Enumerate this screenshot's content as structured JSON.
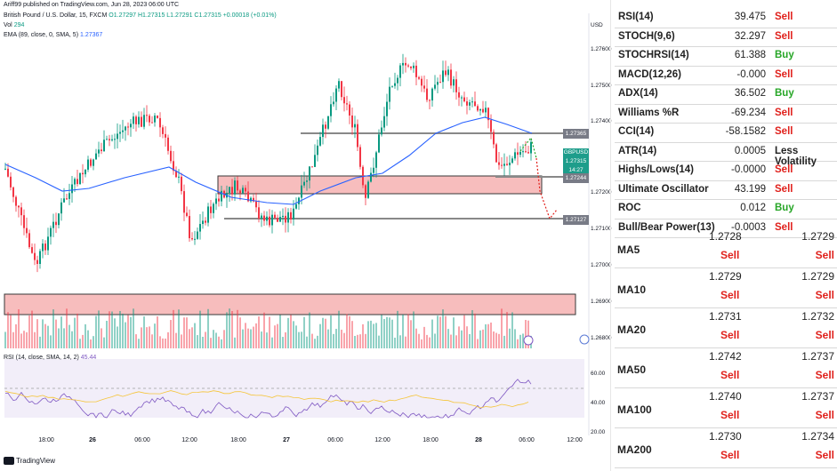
{
  "header": {
    "published": "Ariff99 published on TradingView.com, Jun 28, 2023 06:00 UTC",
    "symbol_line": "British Pound / U.S. Dollar, 15, FXCM",
    "ohlc": "O1.27297 H1.27315 L1.27291 C1.27315 +0.00018 (+0.01%)",
    "vol_label": "Vol",
    "vol_value": "294",
    "ema_label": "EMA (89, close, 0, SMA, 5)",
    "ema_value": "1.27367",
    "rsi_label": "RSI (14, close, SMA, 14, 2)",
    "rsi_value": "45.44"
  },
  "chart": {
    "currency": "USD",
    "price_axis": [
      "1.27600",
      "1.27500",
      "1.27400",
      "1.27200",
      "1.27100",
      "1.27000",
      "1.26900",
      "1.26800"
    ],
    "level_tags": [
      "1.27365",
      "1.27244",
      "1.27127"
    ],
    "price_tag": {
      "symbol": "GBPUSD",
      "price": "1.27315",
      "countdown": "14:27"
    },
    "rsi_axis": [
      "60.00",
      "40.00",
      "20.00"
    ],
    "time_axis": [
      "18:00",
      "26",
      "06:00",
      "12:00",
      "18:00",
      "27",
      "06:00",
      "12:00",
      "18:00",
      "28",
      "06:00",
      "12:00"
    ],
    "brand": "TradingView"
  },
  "indicators": [
    {
      "name": "RSI(14)",
      "value": "39.475",
      "action": "Sell"
    },
    {
      "name": "STOCH(9,6)",
      "value": "32.297",
      "action": "Sell"
    },
    {
      "name": "STOCHRSI(14)",
      "value": "61.388",
      "action": "Buy"
    },
    {
      "name": "MACD(12,26)",
      "value": "-0.000",
      "action": "Sell"
    },
    {
      "name": "ADX(14)",
      "value": "36.502",
      "action": "Buy"
    },
    {
      "name": "Williams %R",
      "value": "-69.234",
      "action": "Sell"
    },
    {
      "name": "CCI(14)",
      "value": "-58.1582",
      "action": "Sell"
    },
    {
      "name": "ATR(14)",
      "value": "0.0005",
      "action": "Less Volatility"
    },
    {
      "name": "Highs/Lows(14)",
      "value": "-0.0000",
      "action": "Sell"
    },
    {
      "name": "Ultimate Oscillator",
      "value": "43.199",
      "action": "Sell"
    },
    {
      "name": "ROC",
      "value": "0.012",
      "action": "Buy"
    },
    {
      "name": "Bull/Bear Power(13)",
      "value": "-0.0003",
      "action": "Sell"
    }
  ],
  "moving_averages": [
    {
      "name": "MA5",
      "simple": "1.2728",
      "simple_action": "Sell",
      "exp": "1.2729",
      "exp_action": "Sell"
    },
    {
      "name": "MA10",
      "simple": "1.2729",
      "simple_action": "Sell",
      "exp": "1.2729",
      "exp_action": "Sell"
    },
    {
      "name": "MA20",
      "simple": "1.2731",
      "simple_action": "Sell",
      "exp": "1.2732",
      "exp_action": "Sell"
    },
    {
      "name": "MA50",
      "simple": "1.2742",
      "simple_action": "Sell",
      "exp": "1.2737",
      "exp_action": "Sell"
    },
    {
      "name": "MA100",
      "simple": "1.2740",
      "simple_action": "Sell",
      "exp": "1.2737",
      "exp_action": "Sell"
    },
    {
      "name": "MA200",
      "simple": "1.2730",
      "simple_action": "Sell",
      "exp": "1.2734",
      "exp_action": "Sell"
    }
  ],
  "colors": {
    "sell": "#e0201b",
    "buy": "#27a627",
    "up_candle": "#089981",
    "down_candle": "#f23645",
    "ema": "#2962ff",
    "zone": "#f7b6b6"
  }
}
